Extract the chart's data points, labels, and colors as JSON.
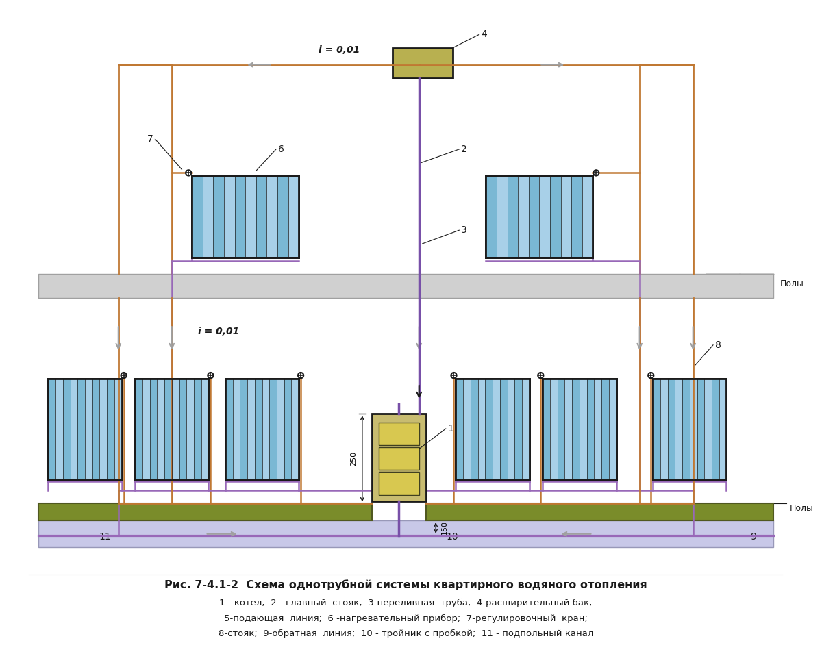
{
  "bg_color": "#ffffff",
  "pipe_supply": "#c07832",
  "pipe_return": "#9868b8",
  "pipe_riser": "#7850a8",
  "rad_fill": "#7ab8d4",
  "rad_fill2": "#a8d0e8",
  "rad_edge": "#1a1a1a",
  "floor_fill": "#7a8c2a",
  "floor_edge": "#505820",
  "wall_fill": "#d0d0d0",
  "wall_edge": "#a0a0a0",
  "boiler_fill": "#c8bc70",
  "boiler_edge": "#1a1a1a",
  "boiler_detail_fill": "#d8c850",
  "boiler_detail2": "#e8e0a0",
  "exp_fill": "#b8b050",
  "exp_edge": "#1a1a1a",
  "channel_fill": "#c8c8e8",
  "channel_edge": "#9898b8",
  "valve_color": "#1a1a1a",
  "text_color": "#1a1a1a",
  "dim_color": "#1a1a1a",
  "arrow_gray": "#a0a0a0",
  "label_color": "#1a1a1a",
  "title": "Рис. 7-4.1-2  Схема однотрубной системы квартирного водяного отопления",
  "leg1": "1 - котел;  2 - главный  стояк;  3-переливная  труба;  4-расширительный бак;",
  "leg2": "5-подающая  линия;  6 -нагревательный прибор;  7-регулировочный  кран;",
  "leg3": "8-стояк;  9-обратная  линия;  10 - тройник с пробкой;  11 - подпольный канал"
}
